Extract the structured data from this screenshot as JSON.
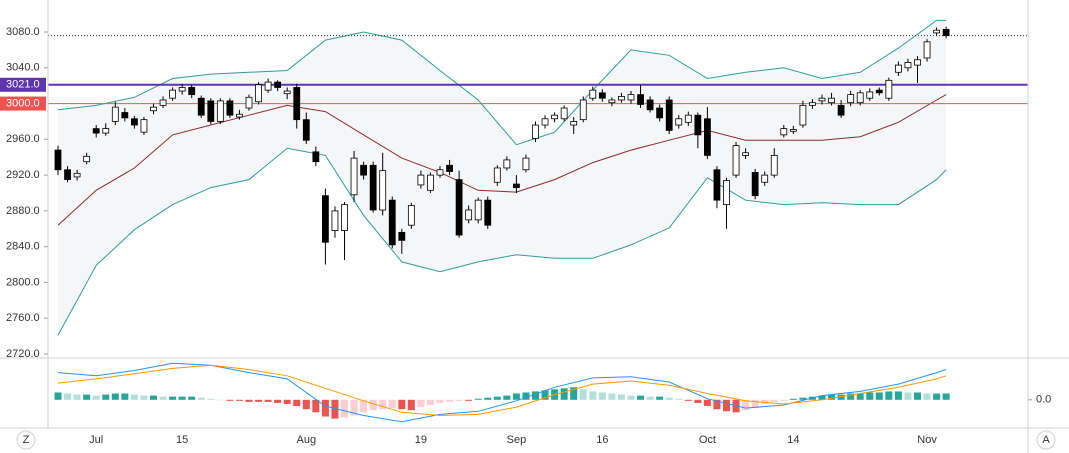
{
  "chart_data": [
    {
      "type": "candlestick",
      "categories": [
        "Jun 25",
        "Jun 26",
        "Jun 27",
        "Jun 28",
        "Jul 1",
        "Jul 2",
        "Jul 3",
        "Jul 5",
        "Jul 8",
        "Jul 9",
        "Jul 10",
        "Jul 11",
        "Jul 12",
        "Jul 15",
        "Jul 16",
        "Jul 17",
        "Jul 18",
        "Jul 19",
        "Jul 22",
        "Jul 23",
        "Jul 24",
        "Jul 25",
        "Jul 26",
        "Jul 29",
        "Jul 30",
        "Jul 31",
        "Aug 1",
        "Aug 2",
        "Aug 5",
        "Aug 6",
        "Aug 7",
        "Aug 8",
        "Aug 9",
        "Aug 12",
        "Aug 13",
        "Aug 14",
        "Aug 15",
        "Aug 16",
        "Aug 19",
        "Aug 20",
        "Aug 21",
        "Aug 22",
        "Aug 23",
        "Aug 26",
        "Aug 27",
        "Aug 28",
        "Aug 29",
        "Aug 30",
        "Sep 3",
        "Sep 4",
        "Sep 5",
        "Sep 6",
        "Sep 9",
        "Sep 10",
        "Sep 11",
        "Sep 12",
        "Sep 13",
        "Sep 16",
        "Sep 17",
        "Sep 18",
        "Sep 19",
        "Sep 20",
        "Sep 23",
        "Sep 24",
        "Sep 25",
        "Sep 26",
        "Sep 27",
        "Sep 30",
        "Oct 1",
        "Oct 2",
        "Oct 3",
        "Oct 4",
        "Oct 7",
        "Oct 8",
        "Oct 9",
        "Oct 10",
        "Oct 11",
        "Oct 14",
        "Oct 15",
        "Oct 16",
        "Oct 17",
        "Oct 18",
        "Oct 21",
        "Oct 22",
        "Oct 23",
        "Oct 24",
        "Oct 25",
        "Oct 28",
        "Oct 29",
        "Oct 30",
        "Oct 31",
        "Nov 1",
        "Nov 4",
        "Nov 5"
      ],
      "open": [
        2948,
        2926,
        2918,
        2935,
        2972,
        2967,
        2980,
        2990,
        2983,
        2968,
        2992,
        2998,
        3006,
        3014,
        3018,
        3006,
        3003,
        2980,
        3003,
        2985,
        2995,
        3002,
        3015,
        3024,
        3011,
        3018,
        2982,
        2946,
        2897,
        2858,
        2858,
        2898,
        2931,
        2931,
        2881,
        2892,
        2856,
        2864,
        2909,
        2903,
        2920,
        2931,
        2915,
        2870,
        2870,
        2892,
        2912,
        2928,
        2910,
        2926,
        2961,
        2976,
        2983,
        2983,
        2976,
        2982,
        3006,
        3012,
        3001,
        3004,
        3004,
        3010,
        3004,
        2995,
        3004,
        2976,
        2979,
        2987,
        2983,
        2926,
        2887,
        2920,
        2942,
        2923,
        2912,
        2920,
        2965,
        2969,
        2976,
        2998,
        3003,
        3001,
        2998,
        3001,
        3001,
        3006,
        3015,
        3006,
        3035,
        3040,
        3043,
        3051,
        3079,
        3083
      ],
      "high": [
        2953,
        2930,
        2926,
        2945,
        2976,
        2978,
        3002,
        2995,
        2986,
        2985,
        3000,
        3008,
        3018,
        3022,
        3021,
        3009,
        3006,
        3006,
        3006,
        2993,
        3010,
        3024,
        3028,
        3026,
        3018,
        3022,
        2990,
        2952,
        2905,
        2885,
        2890,
        2947,
        2935,
        2935,
        2945,
        2896,
        2860,
        2889,
        2925,
        2923,
        2930,
        2937,
        2925,
        2886,
        2895,
        2896,
        2931,
        2941,
        2920,
        2943,
        2980,
        2987,
        2990,
        2998,
        2985,
        3008,
        3019,
        3016,
        3007,
        3012,
        3014,
        3021,
        3008,
        2999,
        3008,
        2987,
        2991,
        2990,
        2996,
        2930,
        2917,
        2957,
        2950,
        2927,
        2924,
        2950,
        2976,
        2975,
        3003,
        3005,
        3010,
        3012,
        3004,
        3014,
        3015,
        3017,
        3018,
        3029,
        3047,
        3050,
        3053,
        3072,
        3085,
        3086
      ],
      "low": [
        2920,
        2912,
        2914,
        2932,
        2962,
        2964,
        2976,
        2980,
        2972,
        2965,
        2988,
        2995,
        3003,
        3010,
        3006,
        2984,
        2977,
        2977,
        2984,
        2982,
        2992,
        2999,
        3012,
        3014,
        3005,
        2972,
        2955,
        2930,
        2820,
        2850,
        2825,
        2890,
        2915,
        2878,
        2875,
        2838,
        2832,
        2860,
        2905,
        2900,
        2917,
        2920,
        2850,
        2866,
        2866,
        2860,
        2908,
        2925,
        2900,
        2923,
        2957,
        2972,
        2979,
        2980,
        2966,
        2979,
        3003,
        3002,
        2997,
        3001,
        3000,
        2995,
        2990,
        2980,
        2966,
        2972,
        2975,
        2950,
        2938,
        2883,
        2860,
        2917,
        2938,
        2893,
        2908,
        2917,
        2962,
        2966,
        2973,
        2994,
        2999,
        2998,
        2984,
        2997,
        2998,
        3003,
        3009,
        3003,
        3031,
        3036,
        3023,
        3047,
        3076,
        3073
      ],
      "close": [
        2926,
        2915,
        2922,
        2941,
        2967,
        2972,
        2996,
        2984,
        2976,
        2982,
        2996,
        3004,
        3015,
        3018,
        3010,
        2987,
        2980,
        3003,
        2987,
        2988,
        3007,
        3021,
        3024,
        3018,
        3014,
        2982,
        2959,
        2935,
        2845,
        2880,
        2887,
        2939,
        2920,
        2881,
        2925,
        2842,
        2847,
        2886,
        2920,
        2920,
        2926,
        2924,
        2853,
        2881,
        2892,
        2864,
        2928,
        2937,
        2906,
        2939,
        2976,
        2983,
        2987,
        2995,
        2980,
        3004,
        3015,
        3006,
        3004,
        3008,
        3010,
        2999,
        2993,
        2984,
        2970,
        2983,
        2987,
        2965,
        2942,
        2892,
        2914,
        2953,
        2945,
        2897,
        2920,
        2942,
        2972,
        2971,
        2998,
        3001,
        3006,
        3006,
        2987,
        3010,
        3012,
        3013,
        3012,
        3026,
        3043,
        3046,
        3049,
        3069,
        3082,
        3076
      ],
      "up_color": "#ffffff",
      "down_color": "#000000",
      "series": [
        {
          "color": "#2a9d9a",
          "x": [
            "Jun 25",
            "Jul 1",
            "Jul 8",
            "Jul 12",
            "Jul 18",
            "Jul 24",
            "Jul 30",
            "Aug 5",
            "Aug 9",
            "Aug 15",
            "Aug 21",
            "Aug 27",
            "Sep 3",
            "Sep 9",
            "Sep 13",
            "Sep 19",
            "Sep 25",
            "Oct 1",
            "Oct 7",
            "Oct 11",
            "Oct 17",
            "Oct 23",
            "Oct 29",
            "Nov 4",
            "Nov 5"
          ],
          "values": [
            2993,
            2998,
            3007,
            3028,
            3033,
            3035,
            3037,
            3071,
            3080,
            3071,
            3037,
            3004,
            2954,
            2968,
            3015,
            3060,
            3054,
            3028,
            3035,
            3040,
            3028,
            3035,
            3062,
            3093,
            3093
          ]
        },
        {
          "color": "#8b2b2b",
          "x": [
            "Jun 25",
            "Jul 1",
            "Jul 8",
            "Jul 12",
            "Jul 18",
            "Jul 24",
            "Jul 30",
            "Aug 5",
            "Aug 9",
            "Aug 15",
            "Aug 21",
            "Aug 27",
            "Sep 3",
            "Sep 9",
            "Sep 13",
            "Sep 19",
            "Sep 25",
            "Oct 1",
            "Oct 7",
            "Oct 11",
            "Oct 17",
            "Oct 23",
            "Oct 29",
            "Nov 4",
            "Nov 5"
          ],
          "values": [
            2864,
            2903,
            2928,
            2965,
            2976,
            2987,
            2998,
            2991,
            2965,
            2939,
            2923,
            2903,
            2901,
            2915,
            2934,
            2948,
            2959,
            2970,
            2959,
            2959,
            2959,
            2963,
            2979,
            3004,
            3010
          ]
        },
        {
          "color": "#2a9d9a",
          "x": [
            "Jun 25",
            "Jul 1",
            "Jul 8",
            "Jul 12",
            "Jul 18",
            "Jul 24",
            "Jul 30",
            "Aug 5",
            "Aug 9",
            "Aug 15",
            "Aug 21",
            "Aug 27",
            "Sep 3",
            "Sep 9",
            "Sep 13",
            "Sep 19",
            "Sep 25",
            "Oct 1",
            "Oct 7",
            "Oct 11",
            "Oct 17",
            "Oct 23",
            "Oct 29",
            "Nov 4",
            "Nov 5"
          ],
          "values": [
            2741,
            2819,
            2859,
            2887,
            2906,
            2915,
            2950,
            2942,
            2875,
            2823,
            2812,
            2823,
            2831,
            2827,
            2827,
            2842,
            2861,
            2917,
            2892,
            2887,
            2889,
            2887,
            2887,
            2915,
            2926
          ]
        }
      ],
      "band_fill": "#f5f6f8",
      "hlines": [
        {
          "value": 3021,
          "label": "3021.0",
          "color": "#5e35b1"
        },
        {
          "value": 3000,
          "label": "3000.0",
          "color": "#ef5350"
        }
      ],
      "last_price_color": "#333333",
      "ylim": [
        2715.5,
        3115.8
      ],
      "yticks": [
        {
          "value": 2720,
          "label": "2720.0"
        },
        {
          "value": 2760,
          "label": "2760.0"
        },
        {
          "value": 2800,
          "label": "2800.0"
        },
        {
          "value": 2840,
          "label": "2840.0"
        },
        {
          "value": 2880,
          "label": "2880.0"
        },
        {
          "value": 2920,
          "label": "2920.0"
        },
        {
          "value": 2960,
          "label": "2960.0"
        },
        {
          "value": 3040,
          "label": "3040.0"
        },
        {
          "value": 3080,
          "label": "3080.0"
        }
      ],
      "xticks": [
        {
          "value": "Jul 1",
          "label": "Jul"
        },
        {
          "value": "Jul 15",
          "label": "15"
        },
        {
          "value": "Aug 1",
          "label": "Aug"
        },
        {
          "value": "Aug 19",
          "label": "19"
        },
        {
          "value": "Sep 3",
          "label": "Sep"
        },
        {
          "value": "Sep 16",
          "label": "16"
        },
        {
          "value": "Oct 1",
          "label": "Oct"
        },
        {
          "value": "Oct 14",
          "label": "14"
        },
        {
          "value": "Nov 1",
          "label": "Nov"
        }
      ]
    },
    {
      "type": "macd",
      "histogram": [
        7,
        6,
        5,
        5,
        4,
        5,
        6,
        6,
        5,
        4,
        4,
        3,
        3,
        3,
        3,
        2,
        1,
        0,
        -1,
        -1,
        -2,
        -2,
        -2,
        -3,
        -4,
        -6,
        -9,
        -12,
        -16,
        -18,
        -17,
        -15,
        -12,
        -10,
        -9,
        -8,
        -9,
        -10,
        -7,
        -5,
        -3,
        -2,
        -1,
        -1,
        1,
        2,
        3,
        4,
        6,
        7,
        8,
        9,
        10,
        11,
        12,
        10,
        8,
        7,
        6,
        5,
        4,
        4,
        3,
        3,
        2,
        1,
        -1,
        -3,
        -6,
        -9,
        -11,
        -12,
        -10,
        -7,
        -4,
        -2,
        -1,
        1,
        2,
        3,
        4,
        5,
        5,
        6,
        6,
        7,
        7,
        8,
        8,
        7,
        7,
        6,
        6,
        6
      ],
      "histogram_colors": {
        "rise_above": "#26a69a",
        "fall_above": "#b2dfdb",
        "fall_below": "#ef5350",
        "rise_below": "#ffcdd2"
      },
      "series": [
        {
          "color": "#2196f3",
          "x": [
            "Jun 25",
            "Jul 1",
            "Jul 8",
            "Jul 12",
            "Jul 18",
            "Jul 24",
            "Jul 30",
            "Aug 5",
            "Aug 9",
            "Aug 15",
            "Aug 21",
            "Aug 27",
            "Sep 3",
            "Sep 9",
            "Sep 13",
            "Sep 19",
            "Sep 25",
            "Oct 1",
            "Oct 7",
            "Oct 11",
            "Oct 17",
            "Oct 23",
            "Oct 29",
            "Nov 4",
            "Nov 5"
          ],
          "values": [
            26,
            23,
            28,
            35,
            33,
            26,
            20,
            -6,
            -15,
            -21,
            -14,
            -11,
            -1,
            12,
            21,
            22,
            17,
            1,
            -8,
            -5,
            4,
            8,
            15,
            26,
            29
          ]
        },
        {
          "color": "#ff9800",
          "x": [
            "Jun 25",
            "Jul 1",
            "Jul 8",
            "Jul 12",
            "Jul 18",
            "Jul 24",
            "Jul 30",
            "Aug 5",
            "Aug 9",
            "Aug 15",
            "Aug 21",
            "Aug 27",
            "Sep 3",
            "Sep 9",
            "Sep 13",
            "Sep 19",
            "Sep 25",
            "Oct 1",
            "Oct 7",
            "Oct 11",
            "Oct 17",
            "Oct 23",
            "Oct 29",
            "Nov 4",
            "Nov 5"
          ],
          "values": [
            16,
            20,
            25,
            30,
            33,
            29,
            23,
            11,
            -1,
            -12,
            -15,
            -14,
            -7,
            5,
            15,
            18,
            14,
            6,
            -1,
            -4,
            0,
            6,
            12,
            20,
            23
          ]
        }
      ],
      "ylim": [
        -27,
        40
      ],
      "yticks": [
        {
          "value": 0,
          "label": "0.0"
        }
      ]
    }
  ],
  "toolbar": {
    "left": "Z",
    "right": "A"
  }
}
